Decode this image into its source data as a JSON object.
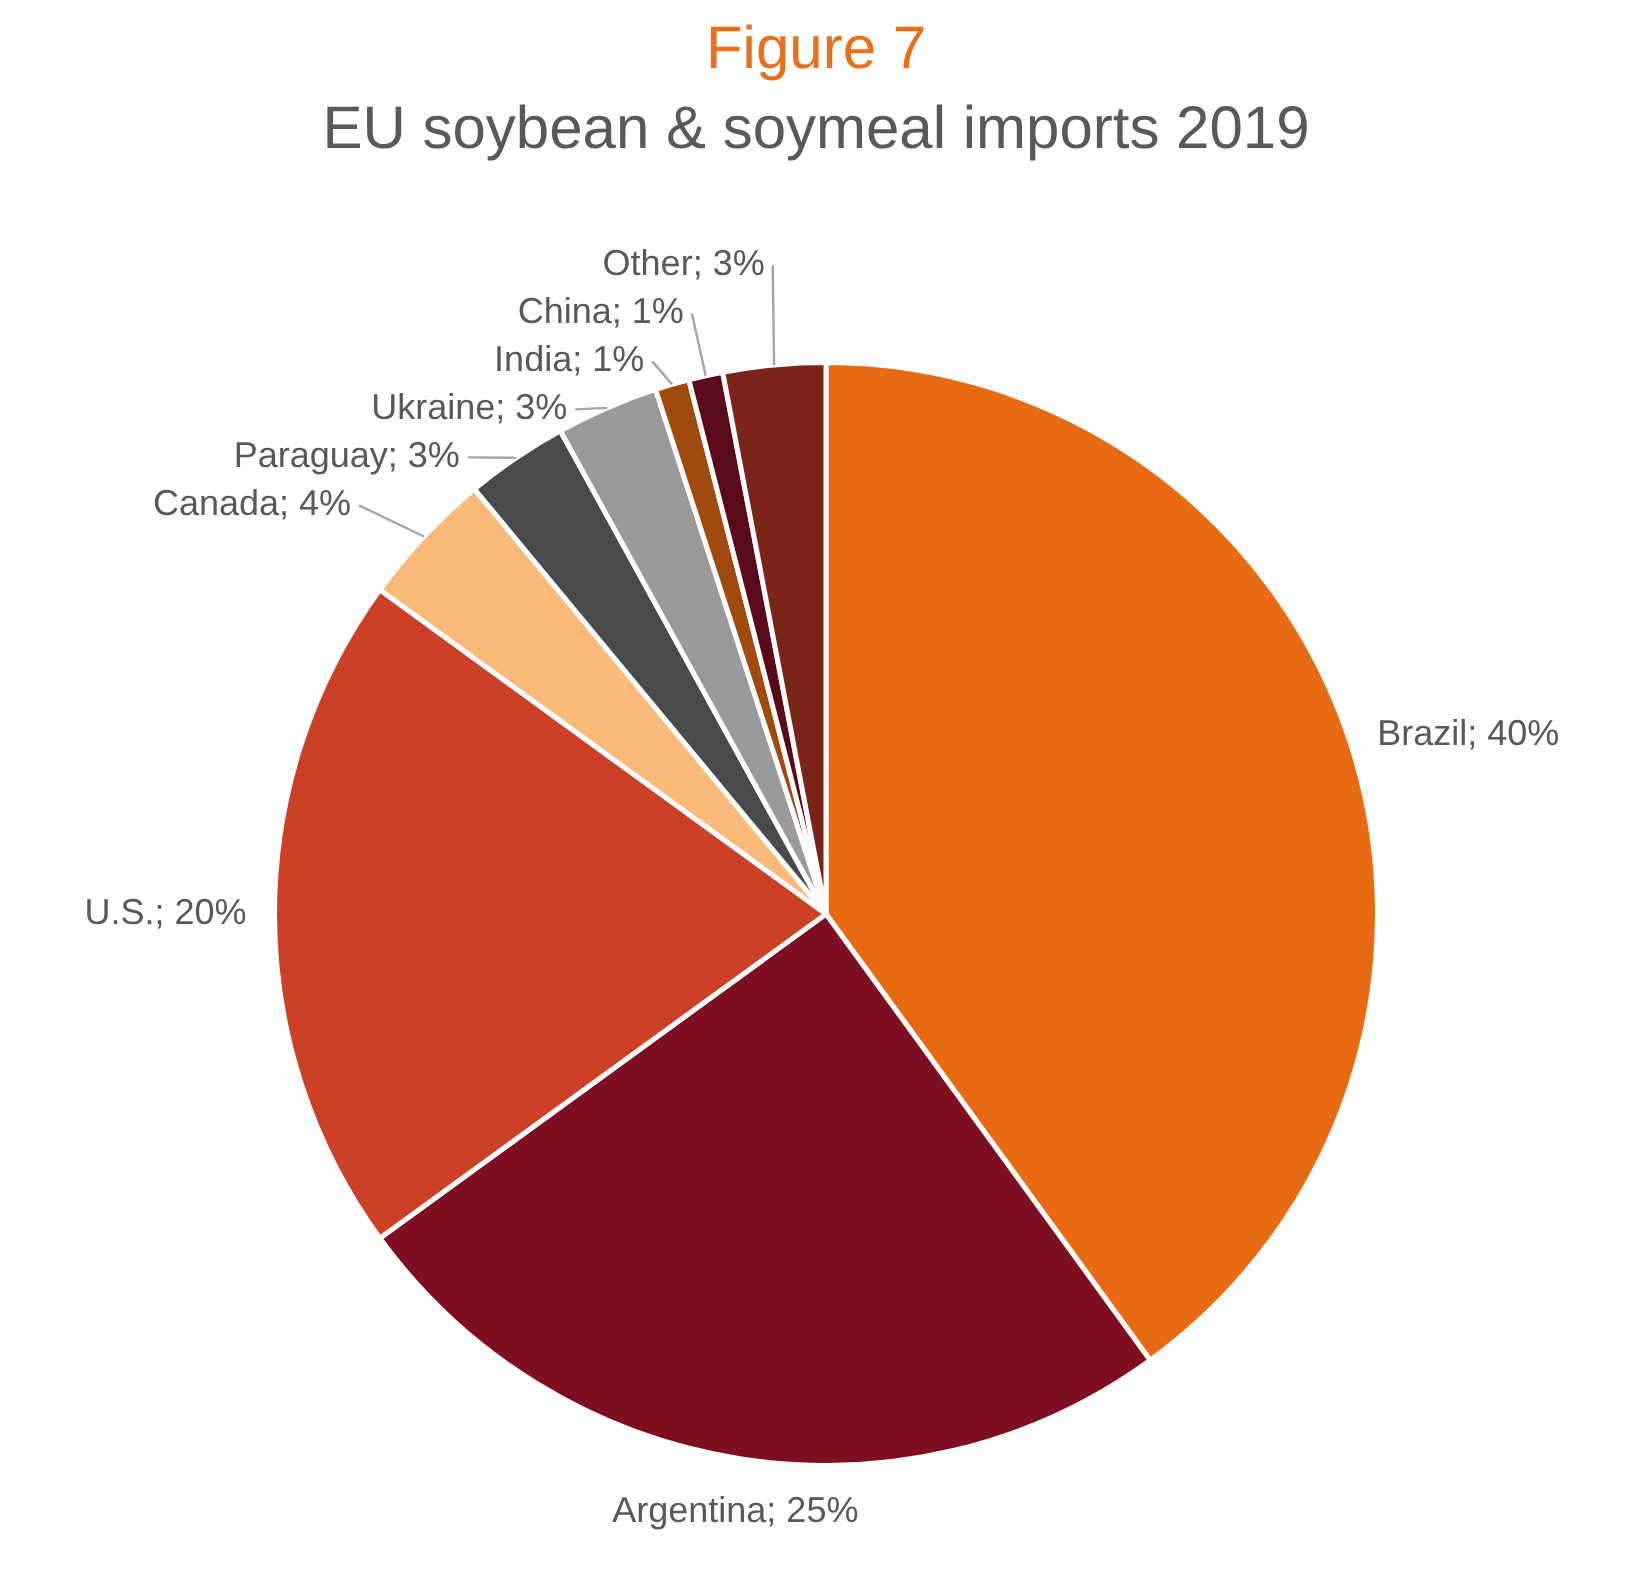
{
  "chart_data": {
    "type": "pie",
    "title": "Figure 7",
    "subtitle": "EU soybean & soymeal imports 2019",
    "categories": [
      "Brazil",
      "Argentina",
      "U.S.",
      "Canada",
      "Paraguay",
      "Ukraine",
      "India",
      "China",
      "Other"
    ],
    "values": [
      40,
      25,
      20,
      4,
      3,
      3,
      1,
      1,
      3
    ],
    "value_labels": [
      "40%",
      "25%",
      "20%",
      "4%",
      "3%",
      "3%",
      "1%",
      "1%",
      "3%"
    ],
    "colors": [
      "#e86a12",
      "#7f0f20",
      "#cc4028",
      "#fbb97a",
      "#4a4a4c",
      "#9a9a9c",
      "#a04a10",
      "#5a0a18",
      "#7a2518"
    ],
    "legend": false
  }
}
